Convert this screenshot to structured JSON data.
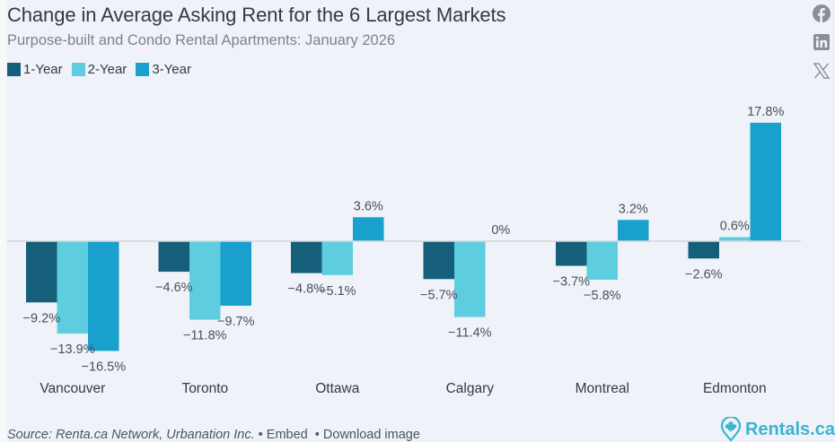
{
  "header": {
    "title": "Change in Average Asking Rent for the 6 Largest Markets",
    "subtitle": "Purpose-built and Condo Rental Apartments: January 2026"
  },
  "social": [
    {
      "name": "facebook-icon"
    },
    {
      "name": "linkedin-icon"
    },
    {
      "name": "x-icon"
    }
  ],
  "footer": {
    "source": "Source: Renta.ca Network, Urbanation Inc.",
    "embed": "Embed",
    "download": "Download image",
    "bullet": "•"
  },
  "logo": {
    "text": "Rentals.ca",
    "color": "#3bb3d1"
  },
  "chart_data": {
    "type": "bar",
    "title": "Change in Average Asking Rent for the 6 Largest Markets",
    "subtitle": "Purpose-built and Condo Rental Apartments: January 2026",
    "xlabel": "",
    "ylabel": "",
    "categories": [
      "Vancouver",
      "Toronto",
      "Ottawa",
      "Calgary",
      "Montreal",
      "Edmonton"
    ],
    "series": [
      {
        "name": "1-Year",
        "color": "#155f7a",
        "values": [
          -9.2,
          -4.6,
          -4.8,
          -5.7,
          -3.7,
          -2.6
        ]
      },
      {
        "name": "2-Year",
        "color": "#5dcddf",
        "values": [
          -13.9,
          -11.8,
          -5.1,
          -11.4,
          -5.8,
          0.6
        ]
      },
      {
        "name": "3-Year",
        "color": "#19a0cc",
        "values": [
          -16.5,
          -9.7,
          3.6,
          0,
          3.2,
          17.8
        ]
      }
    ],
    "value_suffix": "%",
    "ylim": [
      -18,
      18.5
    ],
    "grid": false,
    "zero_line": true,
    "legend": "top-left"
  }
}
